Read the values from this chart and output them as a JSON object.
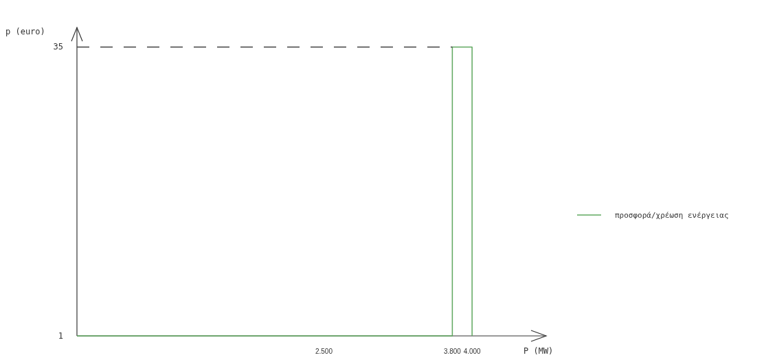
{
  "chart_data": {
    "type": "line",
    "xlabel": "P (MW)",
    "ylabel": "p (euro)",
    "xlim": [
      0,
      4750
    ],
    "ylim": [
      1,
      37.3
    ],
    "xticks": [
      {
        "value": 2500,
        "label": "2.500"
      },
      {
        "value": 3800,
        "label": "3.800"
      },
      {
        "value": 4000,
        "label": "4.000"
      }
    ],
    "yticks": [
      1,
      35
    ],
    "series": [
      {
        "name": "προσφορά/χρέωση ενέργειας",
        "color": "#5fa85f",
        "x": [
          0,
          3800,
          3800,
          4000,
          4000
        ],
        "values": [
          1,
          1,
          35,
          35,
          1
        ]
      },
      {
        "color": "#404040",
        "line_style": "dashed",
        "x": [
          0,
          3800
        ],
        "values": [
          35,
          35
        ]
      }
    ],
    "legend": "right",
    "grid": false,
    "marker": "none"
  }
}
